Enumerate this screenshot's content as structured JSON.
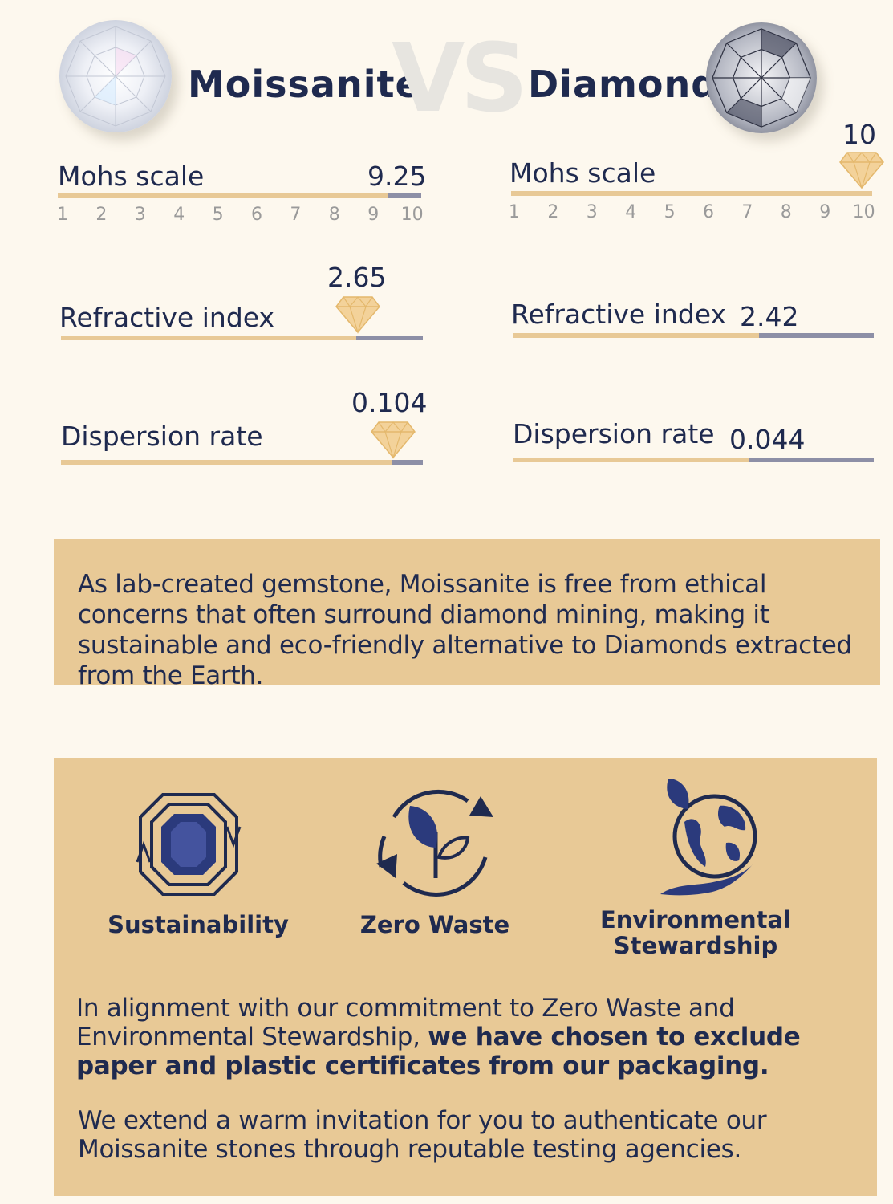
{
  "header": {
    "left_title": "Moissanite",
    "vs": "VS",
    "right_title": "Diamond"
  },
  "scale_ticks": [
    "1",
    "2",
    "3",
    "4",
    "5",
    "6",
    "7",
    "8",
    "9",
    "10"
  ],
  "moissanite": {
    "mohs": {
      "label": "Mohs scale",
      "value": "9.25",
      "fraction": 0.925
    },
    "refractive": {
      "label": "Refractive index",
      "value": "2.65"
    },
    "dispersion": {
      "label": "Dispersion rate",
      "value": "0.104"
    }
  },
  "diamond": {
    "mohs": {
      "label": "Mohs scale",
      "value": "10",
      "fraction": 1.0
    },
    "refractive": {
      "label": "Refractive index",
      "value": "2.42"
    },
    "dispersion": {
      "label": "Dispersion rate",
      "value": "0.044"
    }
  },
  "ethics_text": "As lab-created gemstone, Moissanite is free from ethical concerns that often surround diamond mining, making it sustainable and eco-friendly alternative to Diamonds extracted from the Earth.",
  "icons": [
    {
      "name": "emerald-cut-gem-icon",
      "label": "Sustainability"
    },
    {
      "name": "leaf-recycle-icon",
      "label": "Zero Waste"
    },
    {
      "name": "globe-hand-icon",
      "label_line1": "Environmental",
      "label_line2": "Stewardship"
    }
  ],
  "packaging": {
    "intro": "In alignment with our commitment to Zero Waste and Environmental Stewardship, ",
    "emphasis": "we have chosen to exclude paper and plastic certificates from our packaging.",
    "invitation": "We extend a warm invitation for you to authenticate our Moissanite stones through reputable testing agencies."
  },
  "colors": {
    "background": "#fdf8ee",
    "navy": "#1f2a4f",
    "gold": "#e8c996",
    "slate": "#8d8fa6"
  }
}
